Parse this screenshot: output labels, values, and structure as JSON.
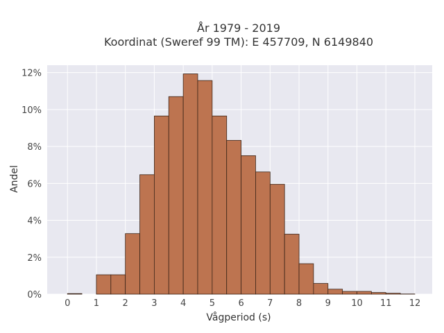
{
  "chart_data": {
    "type": "bar",
    "title_line1": "År 1979 - 2019",
    "title_line2": "Koordinat (Sweref 99 TM): E 457709, N 6149840",
    "xlabel": "Vågperiod (s)",
    "ylabel": "Andel",
    "bin_width": 0.5,
    "bin_starts": [
      0,
      0.5,
      1,
      1.5,
      2,
      2.5,
      3,
      3.5,
      4,
      4.5,
      5,
      5.5,
      6,
      6.5,
      7,
      7.5,
      8,
      8.5,
      9,
      9.5,
      10,
      10.5,
      11,
      11.5
    ],
    "values": [
      0.03,
      0,
      1.05,
      1.05,
      3.28,
      6.47,
      9.65,
      10.7,
      11.93,
      11.57,
      9.65,
      8.33,
      7.5,
      6.62,
      5.95,
      3.25,
      1.65,
      0.58,
      0.27,
      0.15,
      0.15,
      0.09,
      0.05,
      0.01
    ],
    "xlim": [
      -0.7,
      12.6
    ],
    "ylim": [
      0,
      12.4
    ],
    "x_ticks": [
      0,
      1,
      2,
      3,
      4,
      5,
      6,
      7,
      8,
      9,
      10,
      11,
      12
    ],
    "x_tick_labels": [
      "0",
      "1",
      "2",
      "3",
      "4",
      "5",
      "6",
      "7",
      "8",
      "9",
      "10",
      "11",
      "12"
    ],
    "y_ticks": [
      0,
      2,
      4,
      6,
      8,
      10,
      12
    ],
    "y_tick_labels": [
      "0%",
      "2%",
      "4%",
      "6%",
      "8%",
      "10%",
      "12%"
    ],
    "bar_color": "#bd7450",
    "bar_edge_color": "#3a2418",
    "grid": true,
    "plot_background": "#e8e8f0",
    "grid_color": "#ffffff"
  }
}
